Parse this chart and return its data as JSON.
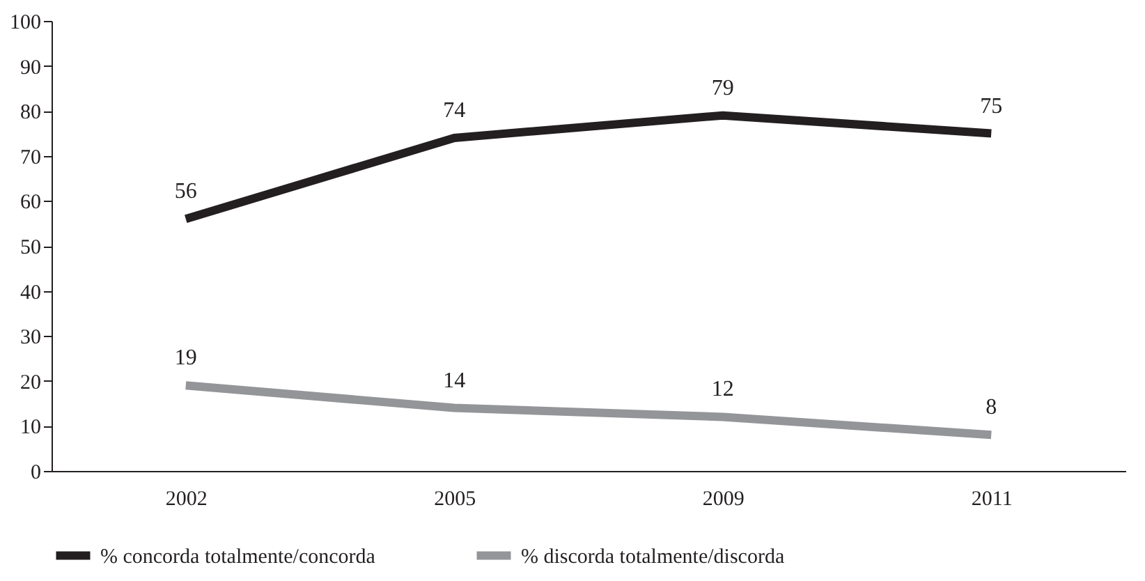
{
  "chart_data": {
    "type": "line",
    "categories": [
      "2002",
      "2005",
      "2009",
      "2011"
    ],
    "series": [
      {
        "name": "% concorda totalmente/concorda",
        "color": "#231f20",
        "values": [
          56,
          74,
          79,
          75
        ]
      },
      {
        "name": "% discorda totalmente/discorda",
        "color": "#939598",
        "values": [
          19,
          14,
          12,
          8
        ]
      }
    ],
    "ylim": [
      0,
      100
    ],
    "yticks": [
      0,
      10,
      20,
      30,
      40,
      50,
      60,
      70,
      80,
      90,
      100
    ],
    "data_labels": true,
    "legend": "bottom",
    "grid": false,
    "line_style": "solid",
    "marker": "none"
  }
}
